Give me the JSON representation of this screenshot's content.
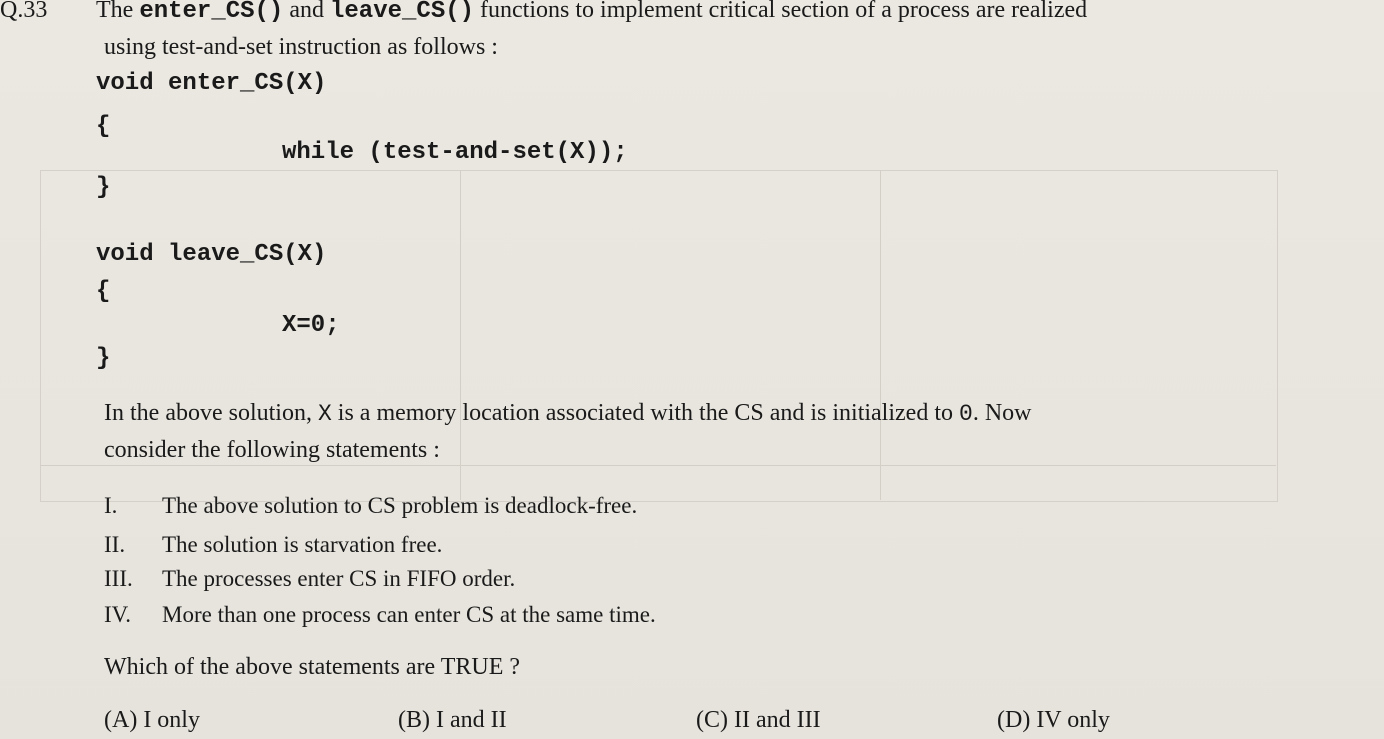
{
  "question": {
    "number": "Q.33",
    "intro_the": "The",
    "fn_enter": "enter_CS()",
    "intro_and": "and",
    "fn_leave": "leave_CS()",
    "intro_rest": "functions to implement critical section of a process are realized",
    "intro_line2": "using test-and-set instruction as follows :"
  },
  "code": {
    "enter_sig": "void enter_CS(X)",
    "open1": "{",
    "while_line": "while (test-and-set(X));",
    "close1": "}",
    "leave_sig": "void leave_CS(X)",
    "open2": "{",
    "assign_line": "X=0;",
    "close2": "}"
  },
  "explanation": {
    "line1_a": "In the above solution,",
    "var_x": "X",
    "line1_b": "is a memory location associated with the CS and is initialized to",
    "zero": "0",
    "line1_c": ". Now",
    "line2": "consider the following statements :"
  },
  "statements": [
    {
      "roman": "I.",
      "text": "The above solution to CS problem is deadlock-free."
    },
    {
      "roman": "II.",
      "text": "The solution is starvation free."
    },
    {
      "roman": "III.",
      "text": "The processes enter CS in FIFO order."
    },
    {
      "roman": "IV.",
      "text": "More than one process can enter CS at the same time."
    }
  ],
  "prompt": "Which of the above statements are TRUE ?",
  "options": [
    {
      "label": "(A) I only"
    },
    {
      "label": "(B) I and II"
    },
    {
      "label": "(C)  II and III"
    },
    {
      "label": "(D)  IV only"
    }
  ]
}
